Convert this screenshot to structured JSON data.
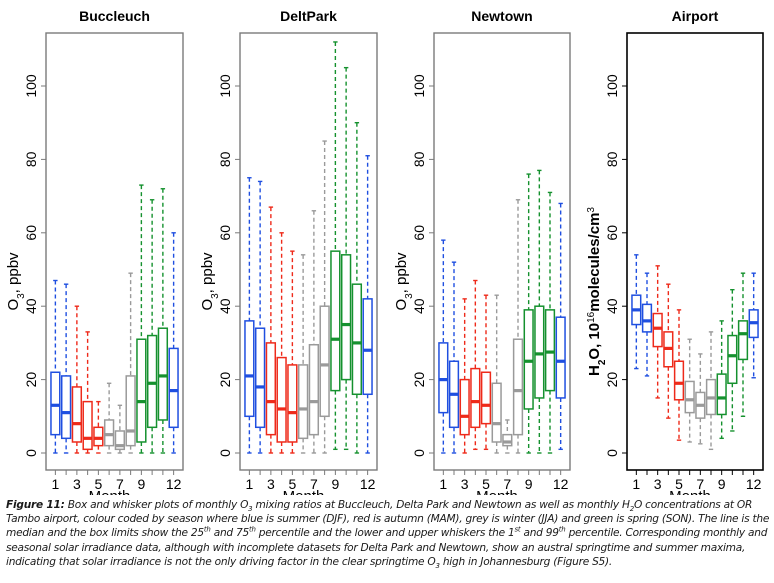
{
  "chart_data": [
    {
      "type": "box",
      "title": "Buccleuch",
      "xlabel": "Month",
      "ylabel": "O3, ppbv",
      "ylim": [
        -3,
        115
      ],
      "yticks": [
        0,
        20,
        40,
        60,
        80,
        100
      ],
      "xticks": [
        1,
        3,
        5,
        7,
        9,
        12
      ],
      "frame": "grey",
      "boxes": [
        {
          "month": 1,
          "season": "summer",
          "low": 0,
          "q1": 5,
          "median": 13,
          "q3": 22,
          "high": 47
        },
        {
          "month": 2,
          "season": "summer",
          "low": 0,
          "q1": 4,
          "median": 11,
          "q3": 21,
          "high": 46
        },
        {
          "month": 3,
          "season": "autumn",
          "low": 0,
          "q1": 3,
          "median": 8,
          "q3": 18,
          "high": 40
        },
        {
          "month": 4,
          "season": "autumn",
          "low": 0,
          "q1": 1,
          "median": 4,
          "q3": 14,
          "high": 33
        },
        {
          "month": 5,
          "season": "autumn",
          "low": 0,
          "q1": 2,
          "median": 4,
          "q3": 7,
          "high": 14
        },
        {
          "month": 6,
          "season": "winter",
          "low": 0,
          "q1": 2,
          "median": 5,
          "q3": 9,
          "high": 19
        },
        {
          "month": 7,
          "season": "winter",
          "low": 0,
          "q1": 1,
          "median": 2,
          "q3": 6,
          "high": 13
        },
        {
          "month": 8,
          "season": "winter",
          "low": 0,
          "q1": 2,
          "median": 6,
          "q3": 21,
          "high": 49
        },
        {
          "month": 9,
          "season": "spring",
          "low": 0,
          "q1": 3,
          "median": 14,
          "q3": 31,
          "high": 73
        },
        {
          "month": 10,
          "season": "spring",
          "low": 0,
          "q1": 7,
          "median": 19,
          "q3": 32,
          "high": 69
        },
        {
          "month": 11,
          "season": "spring",
          "low": 0,
          "q1": 9,
          "median": 21,
          "q3": 34,
          "high": 72
        },
        {
          "month": 12,
          "season": "summer",
          "low": 0,
          "q1": 7,
          "median": 17,
          "q3": 28.5,
          "high": 60
        }
      ]
    },
    {
      "type": "box",
      "title": "DeltPark",
      "xlabel": "Month",
      "ylabel": "O3, ppbv",
      "ylim": [
        -3,
        115
      ],
      "yticks": [
        0,
        20,
        40,
        60,
        80,
        100
      ],
      "xticks": [
        1,
        3,
        5,
        7,
        9,
        12
      ],
      "frame": "grey",
      "boxes": [
        {
          "month": 1,
          "season": "summer",
          "low": 0,
          "q1": 10,
          "median": 21,
          "q3": 36,
          "high": 75
        },
        {
          "month": 2,
          "season": "summer",
          "low": 0,
          "q1": 7,
          "median": 18,
          "q3": 34,
          "high": 74
        },
        {
          "month": 3,
          "season": "autumn",
          "low": 0,
          "q1": 5,
          "median": 14,
          "q3": 30,
          "high": 67
        },
        {
          "month": 4,
          "season": "autumn",
          "low": 0,
          "q1": 3,
          "median": 12,
          "q3": 26,
          "high": 60
        },
        {
          "month": 5,
          "season": "autumn",
          "low": 0,
          "q1": 3,
          "median": 11,
          "q3": 24,
          "high": 55
        },
        {
          "month": 6,
          "season": "winter",
          "low": 0,
          "q1": 4,
          "median": 12,
          "q3": 24,
          "high": 54
        },
        {
          "month": 7,
          "season": "winter",
          "low": 0,
          "q1": 5,
          "median": 14,
          "q3": 29.5,
          "high": 66
        },
        {
          "month": 8,
          "season": "winter",
          "low": 0,
          "q1": 10,
          "median": 24,
          "q3": 40,
          "high": 85
        },
        {
          "month": 9,
          "season": "spring",
          "low": 1,
          "q1": 17,
          "median": 31,
          "q3": 55,
          "high": 112
        },
        {
          "month": 10,
          "season": "spring",
          "low": 1,
          "q1": 20,
          "median": 35,
          "q3": 54,
          "high": 105
        },
        {
          "month": 11,
          "season": "spring",
          "low": 0,
          "q1": 16,
          "median": 30,
          "q3": 46,
          "high": 90
        },
        {
          "month": 12,
          "season": "summer",
          "low": 0,
          "q1": 16,
          "median": 28,
          "q3": 42,
          "high": 81
        }
      ]
    },
    {
      "type": "box",
      "title": "Newtown",
      "xlabel": "Month",
      "ylabel": "O3, ppbv",
      "ylim": [
        -3,
        115
      ],
      "yticks": [
        0,
        20,
        40,
        60,
        80,
        100
      ],
      "xticks": [
        1,
        3,
        5,
        7,
        9,
        12
      ],
      "frame": "grey",
      "boxes": [
        {
          "month": 1,
          "season": "summer",
          "low": 0,
          "q1": 11,
          "median": 20,
          "q3": 30,
          "high": 58
        },
        {
          "month": 2,
          "season": "summer",
          "low": 0,
          "q1": 7,
          "median": 16,
          "q3": 25,
          "high": 52
        },
        {
          "month": 3,
          "season": "autumn",
          "low": 0,
          "q1": 5,
          "median": 10,
          "q3": 20,
          "high": 42
        },
        {
          "month": 4,
          "season": "autumn",
          "low": 1,
          "q1": 7,
          "median": 14,
          "q3": 23,
          "high": 47
        },
        {
          "month": 5,
          "season": "autumn",
          "low": 1,
          "q1": 8,
          "median": 13,
          "q3": 22,
          "high": 43
        },
        {
          "month": 6,
          "season": "winter",
          "low": 0,
          "q1": 3,
          "median": 8,
          "q3": 19,
          "high": 43
        },
        {
          "month": 7,
          "season": "winter",
          "low": 0,
          "q1": 2,
          "median": 3,
          "q3": 5,
          "high": 9
        },
        {
          "month": 8,
          "season": "winter",
          "low": 0,
          "q1": 5,
          "median": 17,
          "q3": 31,
          "high": 69
        },
        {
          "month": 9,
          "season": "spring",
          "low": 0,
          "q1": 12,
          "median": 25,
          "q3": 39,
          "high": 76
        },
        {
          "month": 10,
          "season": "spring",
          "low": 0,
          "q1": 15,
          "median": 27,
          "q3": 40,
          "high": 77
        },
        {
          "month": 11,
          "season": "spring",
          "low": 0,
          "q1": 17,
          "median": 27.5,
          "q3": 39,
          "high": 71
        },
        {
          "month": 12,
          "season": "summer",
          "low": 1,
          "q1": 15,
          "median": 25,
          "q3": 37,
          "high": 68
        }
      ]
    },
    {
      "type": "box",
      "title": "Airport",
      "xlabel": "Month",
      "ylabel": "H2O, 10^16 molecules/cm^3",
      "ylim": [
        -3,
        115
      ],
      "yticks": [
        0,
        20,
        40,
        60,
        80,
        100
      ],
      "xticks": [
        1,
        3,
        5,
        7,
        9,
        12
      ],
      "frame": "black",
      "boxes": [
        {
          "month": 1,
          "season": "summer",
          "low": 23,
          "q1": 35,
          "median": 39,
          "q3": 43,
          "high": 54
        },
        {
          "month": 2,
          "season": "summer",
          "low": 21,
          "q1": 33,
          "median": 36,
          "q3": 40.5,
          "high": 49
        },
        {
          "month": 3,
          "season": "autumn",
          "low": 15,
          "q1": 29,
          "median": 34,
          "q3": 38,
          "high": 51
        },
        {
          "month": 4,
          "season": "autumn",
          "low": 9.5,
          "q1": 23.5,
          "median": 28.5,
          "q3": 33,
          "high": 46
        },
        {
          "month": 5,
          "season": "autumn",
          "low": 3.5,
          "q1": 14.5,
          "median": 19,
          "q3": 25,
          "high": 39
        },
        {
          "month": 6,
          "season": "winter",
          "low": 3,
          "q1": 11,
          "median": 14.5,
          "q3": 19.5,
          "high": 31
        },
        {
          "month": 7,
          "season": "winter",
          "low": 2.5,
          "q1": 9.5,
          "median": 13,
          "q3": 16.5,
          "high": 27
        },
        {
          "month": 8,
          "season": "winter",
          "low": 1,
          "q1": 10.5,
          "median": 15,
          "q3": 20,
          "high": 33
        },
        {
          "month": 9,
          "season": "spring",
          "low": 4,
          "q1": 10.5,
          "median": 15,
          "q3": 21.5,
          "high": 36
        },
        {
          "month": 10,
          "season": "spring",
          "low": 6,
          "q1": 19,
          "median": 26.5,
          "q3": 32,
          "high": 44.5
        },
        {
          "month": 11,
          "season": "spring",
          "low": 10,
          "q1": 25.5,
          "median": 32.5,
          "q3": 36,
          "high": 49
        },
        {
          "month": 12,
          "season": "summer",
          "low": 20.5,
          "q1": 31.5,
          "median": 35.5,
          "q3": 39,
          "high": 49
        }
      ]
    }
  ],
  "season_colors": {
    "summer": "#1f4fe0",
    "autumn": "#ee2a1a",
    "winter": "#9a9a9a",
    "spring": "#15912e"
  },
  "caption": {
    "label": "Figure 11:",
    "p1": " Box and whisker plots of monthly O",
    "p1_sub": "3",
    "p2": " mixing ratios at Buccleuch, Delta Park and Newtown as well as monthly H",
    "p2_sub": "2",
    "p3": "O concentrations at OR Tambo airport, colour coded by season where blue is summer (DJF), red is autumn (MAM), grey is winter (JJA) and green is spring (SON). The line is the median and the box limits show the 25",
    "p3_sup": "th",
    "p4": " and 75",
    "p4_sup": "th",
    "p5": " percentile and the lower and upper whiskers the 1",
    "p5_sup": "st",
    "p6": " and 99",
    "p6_sup": "th",
    "p7": " percentile. Corresponding monthly and seasonal solar irradiance data, although with incomplete datasets for Delta Park and Newtown, show an austral springtime and summer maxima, indicating that solar irradiance is not the only driving factor in the clear springtime O",
    "p7_sub": "3",
    "p8": " high in Johannesburg (Figure S5)."
  }
}
